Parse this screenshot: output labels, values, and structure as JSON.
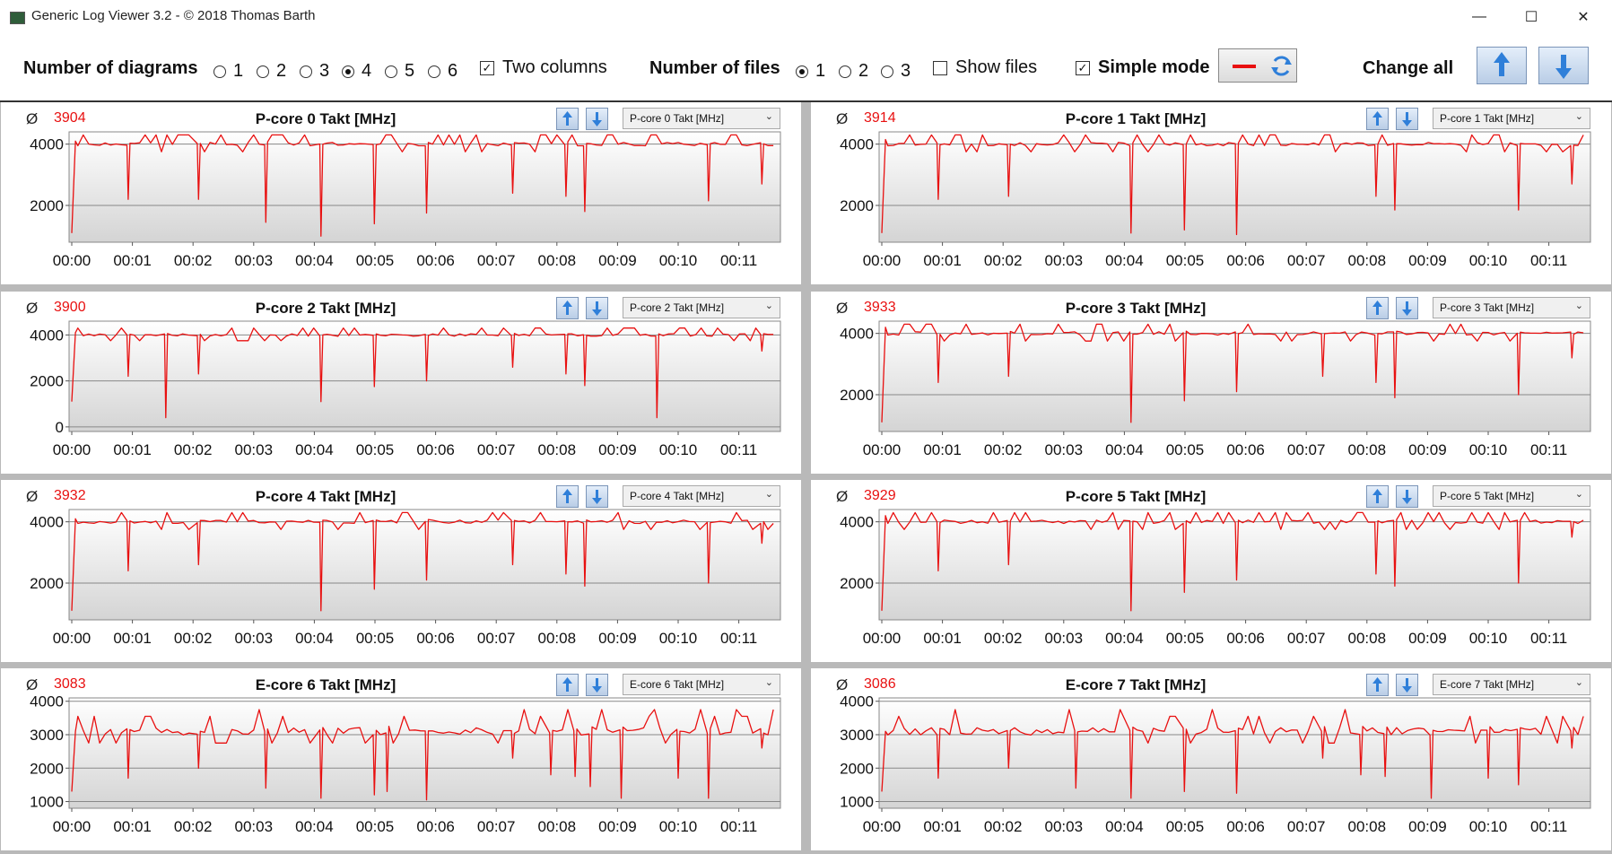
{
  "window": {
    "title": "Generic Log Viewer 3.2 - © 2018 Thomas Barth",
    "minimize_glyph": "—",
    "maximize_glyph": "☐",
    "close_glyph": "✕"
  },
  "toolbar": {
    "num_diagrams_label": "Number of diagrams",
    "diagram_options": [
      "1",
      "2",
      "3",
      "4",
      "5",
      "6"
    ],
    "diagram_selected": "4",
    "two_columns_label": "Two columns",
    "two_columns_checked": true,
    "num_files_label": "Number of files",
    "file_options": [
      "1",
      "2",
      "3"
    ],
    "file_selected": "1",
    "show_files_label": "Show files",
    "show_files_checked": false,
    "simple_mode_label": "Simple mode",
    "simple_mode_checked": true,
    "change_all_label": "Change all",
    "line_color": "#e81010"
  },
  "colors": {
    "series": "#e81010",
    "arrow": "#2f7fd9",
    "gridline": "#888888"
  },
  "panels": [
    {
      "avg_symbol": "Ø",
      "avg": "3904",
      "title": "P-core 0 Takt [MHz]",
      "selector": "P-core 0 Takt [MHz]"
    },
    {
      "avg_symbol": "Ø",
      "avg": "3914",
      "title": "P-core 1 Takt [MHz]",
      "selector": "P-core 1 Takt [MHz]"
    },
    {
      "avg_symbol": "Ø",
      "avg": "3900",
      "title": "P-core 2 Takt [MHz]",
      "selector": "P-core 2 Takt [MHz]"
    },
    {
      "avg_symbol": "Ø",
      "avg": "3933",
      "title": "P-core 3 Takt [MHz]",
      "selector": "P-core 3 Takt [MHz]"
    },
    {
      "avg_symbol": "Ø",
      "avg": "3932",
      "title": "P-core 4 Takt [MHz]",
      "selector": "P-core 4 Takt [MHz]"
    },
    {
      "avg_symbol": "Ø",
      "avg": "3929",
      "title": "P-core 5 Takt [MHz]",
      "selector": "P-core 5 Takt [MHz]"
    },
    {
      "avg_symbol": "Ø",
      "avg": "3083",
      "title": "E-core 6 Takt [MHz]",
      "selector": "E-core 6 Takt [MHz]"
    },
    {
      "avg_symbol": "Ø",
      "avg": "3086",
      "title": "E-core 7 Takt [MHz]",
      "selector": "E-core 7 Takt [MHz]"
    }
  ],
  "chart_data": [
    {
      "type": "line",
      "title": "P-core 0 Takt [MHz]",
      "ylim": [
        800,
        4400
      ],
      "yticks": [
        2000,
        4000
      ],
      "x_ticks": [
        "00:00",
        "00:01",
        "00:02",
        "00:03",
        "00:04",
        "00:05",
        "00:06",
        "00:07",
        "00:08",
        "00:09",
        "00:10",
        "00:11"
      ],
      "grid": true,
      "baseline": 4000,
      "start": [
        1100,
        4100
      ],
      "dips": [
        [
          0.93,
          2200
        ],
        [
          2.09,
          2200
        ],
        [
          3.2,
          1450
        ],
        [
          4.11,
          1000
        ],
        [
          4.99,
          1400
        ],
        [
          5.85,
          1750
        ],
        [
          7.27,
          2400
        ],
        [
          8.15,
          2300
        ],
        [
          8.46,
          1800
        ],
        [
          10.5,
          2150
        ],
        [
          11.38,
          2700
        ]
      ]
    },
    {
      "type": "line",
      "title": "P-core 1 Takt [MHz]",
      "ylim": [
        800,
        4400
      ],
      "yticks": [
        2000,
        4000
      ],
      "x_ticks": [
        "00:00",
        "00:01",
        "00:02",
        "00:03",
        "00:04",
        "00:05",
        "00:06",
        "00:07",
        "00:08",
        "00:09",
        "00:10",
        "00:11"
      ],
      "grid": true,
      "baseline": 4000,
      "start": [
        1100,
        4150
      ],
      "dips": [
        [
          0.93,
          2200
        ],
        [
          2.09,
          2300
        ],
        [
          4.11,
          1100
        ],
        [
          4.99,
          1200
        ],
        [
          5.85,
          1050
        ],
        [
          8.15,
          2300
        ],
        [
          8.46,
          1850
        ],
        [
          10.5,
          1850
        ],
        [
          11.38,
          2700
        ]
      ]
    },
    {
      "type": "line",
      "title": "P-core 2 Takt [MHz]",
      "ylim": [
        -200,
        4600
      ],
      "yticks": [
        0,
        2000,
        4000
      ],
      "x_ticks": [
        "00:00",
        "00:01",
        "00:02",
        "00:03",
        "00:04",
        "00:05",
        "00:06",
        "00:07",
        "00:08",
        "00:09",
        "00:10",
        "00:11"
      ],
      "grid": true,
      "baseline": 4000,
      "start": [
        1100,
        4100
      ],
      "dips": [
        [
          0.93,
          2200
        ],
        [
          1.55,
          400
        ],
        [
          2.09,
          2300
        ],
        [
          4.11,
          1100
        ],
        [
          4.99,
          1750
        ],
        [
          5.85,
          2000
        ],
        [
          7.27,
          2600
        ],
        [
          8.15,
          2300
        ],
        [
          8.46,
          1800
        ],
        [
          9.65,
          400
        ],
        [
          11.38,
          3300
        ]
      ]
    },
    {
      "type": "line",
      "title": "P-core 3 Takt [MHz]",
      "ylim": [
        800,
        4400
      ],
      "yticks": [
        2000,
        4000
      ],
      "x_ticks": [
        "00:00",
        "00:01",
        "00:02",
        "00:03",
        "00:04",
        "00:05",
        "00:06",
        "00:07",
        "00:08",
        "00:09",
        "00:10",
        "00:11"
      ],
      "grid": true,
      "baseline": 4000,
      "start": [
        1100,
        4200
      ],
      "dips": [
        [
          0.93,
          2400
        ],
        [
          2.09,
          2600
        ],
        [
          4.11,
          1100
        ],
        [
          4.99,
          1800
        ],
        [
          5.85,
          2100
        ],
        [
          7.27,
          2600
        ],
        [
          8.15,
          2400
        ],
        [
          8.46,
          1900
        ],
        [
          10.5,
          2000
        ],
        [
          11.38,
          3200
        ]
      ]
    },
    {
      "type": "line",
      "title": "P-core 4 Takt [MHz]",
      "ylim": [
        800,
        4400
      ],
      "yticks": [
        2000,
        4000
      ],
      "x_ticks": [
        "00:00",
        "00:01",
        "00:02",
        "00:03",
        "00:04",
        "00:05",
        "00:06",
        "00:07",
        "00:08",
        "00:09",
        "00:10",
        "00:11"
      ],
      "grid": true,
      "baseline": 4000,
      "start": [
        1100,
        4100
      ],
      "dips": [
        [
          0.93,
          2400
        ],
        [
          2.09,
          2600
        ],
        [
          4.11,
          1100
        ],
        [
          4.99,
          1800
        ],
        [
          5.85,
          2100
        ],
        [
          7.27,
          2600
        ],
        [
          8.15,
          2300
        ],
        [
          8.46,
          1900
        ],
        [
          10.5,
          2000
        ],
        [
          11.38,
          3300
        ]
      ]
    },
    {
      "type": "line",
      "title": "P-core 5 Takt [MHz]",
      "ylim": [
        800,
        4400
      ],
      "yticks": [
        2000,
        4000
      ],
      "x_ticks": [
        "00:00",
        "00:01",
        "00:02",
        "00:03",
        "00:04",
        "00:05",
        "00:06",
        "00:07",
        "00:08",
        "00:09",
        "00:10",
        "00:11"
      ],
      "grid": true,
      "baseline": 4000,
      "start": [
        1100,
        4200
      ],
      "dips": [
        [
          0.93,
          2400
        ],
        [
          2.09,
          2600
        ],
        [
          4.11,
          1100
        ],
        [
          4.99,
          1700
        ],
        [
          5.85,
          2100
        ],
        [
          8.15,
          2300
        ],
        [
          8.46,
          1900
        ],
        [
          10.5,
          2000
        ],
        [
          11.38,
          3500
        ]
      ]
    },
    {
      "type": "line",
      "title": "E-core 6 Takt [MHz]",
      "ylim": [
        800,
        4100
      ],
      "yticks": [
        1000,
        2000,
        3000,
        4000
      ],
      "x_ticks": [
        "00:00",
        "00:01",
        "00:02",
        "00:03",
        "00:04",
        "00:05",
        "00:06",
        "00:07",
        "00:08",
        "00:09",
        "00:10",
        "00:11"
      ],
      "grid": true,
      "baseline": 3100,
      "start": [
        1300,
        3100
      ],
      "dips": [
        [
          0.93,
          1700
        ],
        [
          2.09,
          2000
        ],
        [
          3.2,
          1400
        ],
        [
          4.11,
          1100
        ],
        [
          4.99,
          1200
        ],
        [
          5.2,
          1300
        ],
        [
          5.85,
          1050
        ],
        [
          7.27,
          2300
        ],
        [
          7.9,
          1800
        ],
        [
          8.3,
          1750
        ],
        [
          8.55,
          1450
        ],
        [
          9.06,
          1100
        ],
        [
          10.0,
          1700
        ],
        [
          10.5,
          1100
        ],
        [
          11.38,
          2600
        ]
      ]
    },
    {
      "type": "line",
      "title": "E-core 7 Takt [MHz]",
      "ylim": [
        800,
        4100
      ],
      "yticks": [
        1000,
        2000,
        3000,
        4000
      ],
      "x_ticks": [
        "00:00",
        "00:01",
        "00:02",
        "00:03",
        "00:04",
        "00:05",
        "00:06",
        "00:07",
        "00:08",
        "00:09",
        "00:10",
        "00:11"
      ],
      "grid": true,
      "baseline": 3100,
      "start": [
        1300,
        3100
      ],
      "dips": [
        [
          0.93,
          1700
        ],
        [
          2.09,
          2000
        ],
        [
          3.2,
          1400
        ],
        [
          4.11,
          1100
        ],
        [
          4.99,
          1300
        ],
        [
          5.85,
          1250
        ],
        [
          7.27,
          2300
        ],
        [
          7.9,
          1800
        ],
        [
          8.3,
          1750
        ],
        [
          9.06,
          1100
        ],
        [
          10.0,
          1700
        ],
        [
          10.5,
          1500
        ],
        [
          11.38,
          2600
        ]
      ]
    }
  ]
}
